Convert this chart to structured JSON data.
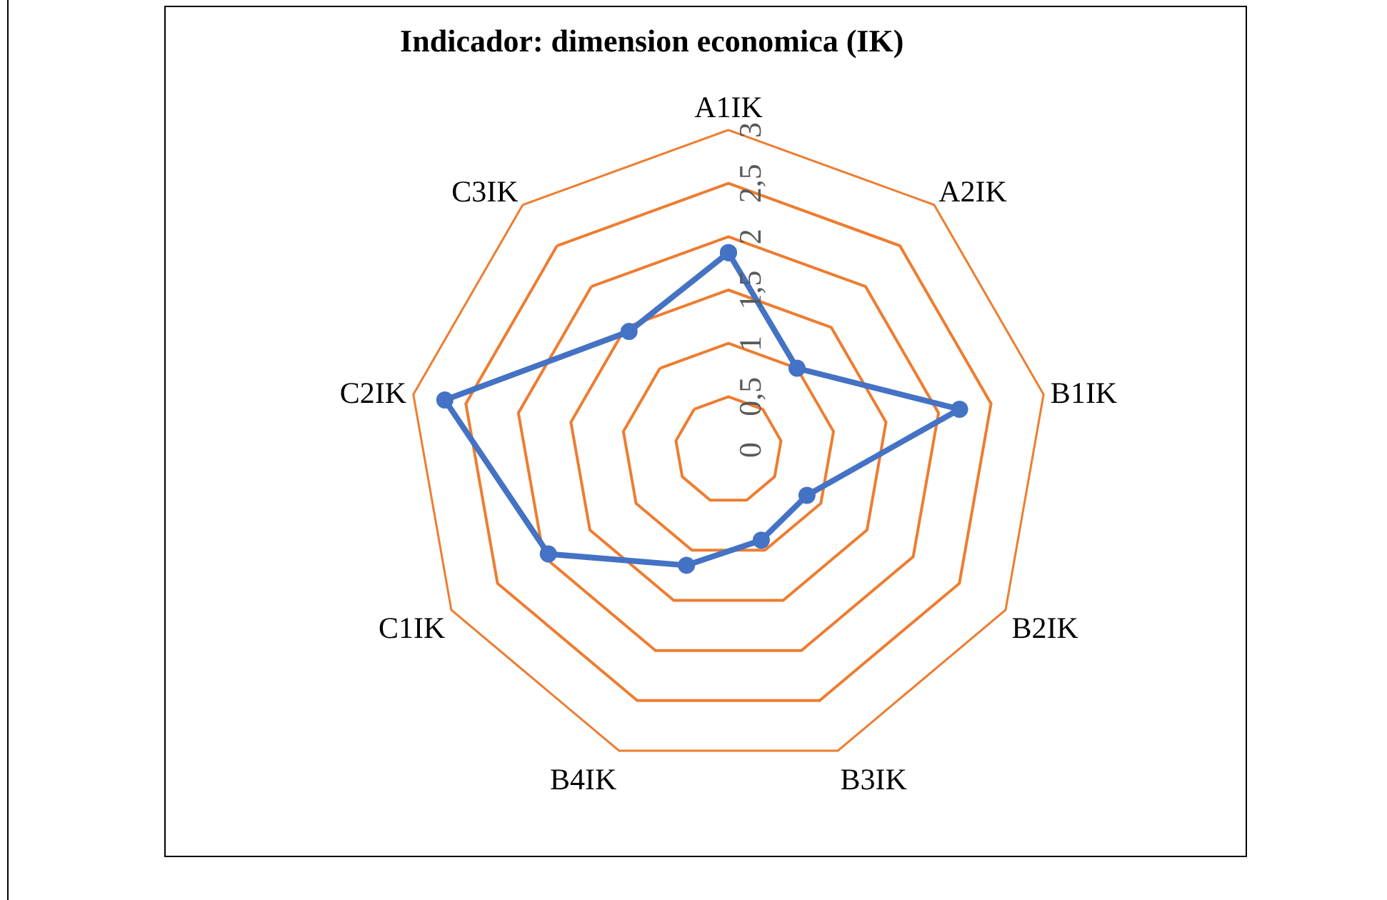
{
  "chart_data": {
    "type": "radar",
    "title": "Indicador: dimension economica (IK)",
    "categories": [
      "A1IK",
      "A2IK",
      "B1IK",
      "B2IK",
      "B3IK",
      "B4IK",
      "C1IK",
      "C2IK",
      "C3IK"
    ],
    "series": [
      {
        "color": "#4472c4",
        "values": [
          1.85,
          1.0,
          2.2,
          0.85,
          0.9,
          1.15,
          1.95,
          2.7,
          1.45
        ]
      }
    ],
    "ylim": [
      0,
      3
    ],
    "yticks": [
      0,
      {
        "value": 0.5,
        "label": "0,5"
      },
      1,
      {
        "value": 1.5,
        "label": "1,5"
      },
      2,
      {
        "value": 2.5,
        "label": "2,5"
      },
      3
    ],
    "grid": true,
    "marker": "circle",
    "line_style": "solid"
  }
}
